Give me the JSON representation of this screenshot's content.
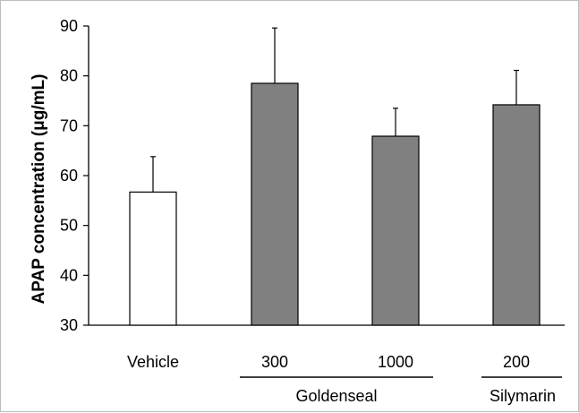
{
  "chart_data": {
    "type": "bar",
    "title": "",
    "xlabel": "",
    "ylabel": "APAP concentration (μg/mL)",
    "ylim": [
      30,
      90
    ],
    "yticks": [
      30,
      40,
      50,
      60,
      70,
      80,
      90
    ],
    "categories": [
      "Vehicle",
      "300",
      "1000",
      "200"
    ],
    "values": [
      56.7,
      78.5,
      67.9,
      74.2
    ],
    "error_upper": [
      63.8,
      89.6,
      73.5,
      81.1
    ],
    "bar_colors": [
      "#ffffff",
      "#808080",
      "#808080",
      "#808080"
    ],
    "groups": [
      {
        "label": "Goldenseal",
        "categories": [
          "300",
          "1000"
        ]
      },
      {
        "label": "Silymarin",
        "categories": [
          "200"
        ]
      }
    ],
    "grid": false,
    "legend": "none"
  }
}
